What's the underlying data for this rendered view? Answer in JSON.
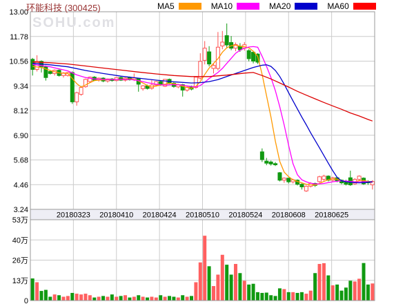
{
  "header": {
    "title": "环能科技 (300425)",
    "watermark": "SOHU.com"
  },
  "legend": {
    "items": [
      {
        "label": "MA5",
        "color": "#FF9900"
      },
      {
        "label": "MA10",
        "color": "#FF00FF"
      },
      {
        "label": "MA20",
        "color": "#0000CC"
      },
      {
        "label": "MA60",
        "color": "#FF0000"
      }
    ]
  },
  "chart_data": {
    "type": "candlestick-with-volume",
    "title": "环能科技 (300425)",
    "price_axis": {
      "tick_labels": [
        "13.00",
        "11.78",
        "10.56",
        "9.34",
        "8.12",
        "6.90",
        "5.68",
        "4.46",
        "3.24"
      ],
      "max": 13.0,
      "min": 3.24,
      "grid": true
    },
    "volume_axis": {
      "tick_labels": [
        "53万",
        "40万",
        "26万",
        "13万",
        "0"
      ],
      "max_wan": 53,
      "min_wan": 0
    },
    "x_axis": {
      "date_labels": [
        "20180323",
        "20180410",
        "20180424",
        "20180510",
        "20180524",
        "20180608",
        "20180625"
      ],
      "label_candle_indices": [
        9,
        19,
        29,
        39,
        49,
        59,
        69
      ]
    },
    "colors": {
      "up": "#FF5050",
      "down": "#119911",
      "ma5": "#FF9900",
      "ma10": "#FF00FF",
      "ma20": "#0000CC",
      "ma60": "#DD0000",
      "grid": "#CCCCCC",
      "border": "#999999",
      "band_bg": "#EEEEF5"
    },
    "candles": [
      [
        10.65,
        10.72,
        9.85,
        10.15
      ],
      [
        10.15,
        10.85,
        10.05,
        10.55
      ],
      [
        10.55,
        10.6,
        10.0,
        10.28
      ],
      [
        10.28,
        10.35,
        9.6,
        9.75
      ],
      [
        10.05,
        10.12,
        9.9,
        9.95
      ],
      [
        9.95,
        10.15,
        9.85,
        10.11
      ],
      [
        10.11,
        10.15,
        9.8,
        9.85
      ],
      [
        9.85,
        10.02,
        9.75,
        9.98
      ],
      [
        9.85,
        10.03,
        9.8,
        10.0
      ],
      [
        10.0,
        10.05,
        8.45,
        8.55
      ],
      [
        8.55,
        9.05,
        8.36,
        9.0
      ],
      [
        8.92,
        9.3,
        8.85,
        9.26
      ],
      [
        9.3,
        9.7,
        9.25,
        9.66
      ],
      [
        9.55,
        9.8,
        9.5,
        9.77
      ],
      [
        9.77,
        9.82,
        9.58,
        9.62
      ],
      [
        9.62,
        9.75,
        9.55,
        9.72
      ],
      [
        9.72,
        9.76,
        9.52,
        9.58
      ],
      [
        9.58,
        9.7,
        9.5,
        9.68
      ],
      [
        9.68,
        9.72,
        9.55,
        9.6
      ],
      [
        9.6,
        9.78,
        9.56,
        9.75
      ],
      [
        9.75,
        9.8,
        9.58,
        9.62
      ],
      [
        9.62,
        9.76,
        9.55,
        9.73
      ],
      [
        9.75,
        9.8,
        9.6,
        9.64
      ],
      [
        9.64,
        9.95,
        9.58,
        9.73
      ],
      [
        9.7,
        9.72,
        9.05,
        9.42
      ],
      [
        9.2,
        9.38,
        9.1,
        9.34
      ],
      [
        9.34,
        9.4,
        9.16,
        9.21
      ],
      [
        9.22,
        9.62,
        9.15,
        9.38
      ],
      [
        9.38,
        9.58,
        9.3,
        9.55
      ],
      [
        9.55,
        9.6,
        9.35,
        9.41
      ],
      [
        9.32,
        9.68,
        9.28,
        9.66
      ],
      [
        9.66,
        9.7,
        9.42,
        9.47
      ],
      [
        9.47,
        9.52,
        9.25,
        9.31
      ],
      [
        9.29,
        9.44,
        9.22,
        9.4
      ],
      [
        9.4,
        9.44,
        8.81,
        9.13
      ],
      [
        9.13,
        9.32,
        9.05,
        9.28
      ],
      [
        9.3,
        9.35,
        9.12,
        9.18
      ],
      [
        9.26,
        9.8,
        9.2,
        9.77
      ],
      [
        9.72,
        10.95,
        9.65,
        10.55
      ],
      [
        10.6,
        11.55,
        10.4,
        11.2
      ],
      [
        11.02,
        11.3,
        10.3,
        10.42
      ],
      [
        10.2,
        10.45,
        9.95,
        10.35
      ],
      [
        10.2,
        12.0,
        10.1,
        11.25
      ],
      [
        11.31,
        12.05,
        11.15,
        11.5
      ],
      [
        11.82,
        12.42,
        11.2,
        11.36
      ],
      [
        11.48,
        11.8,
        11.1,
        11.2
      ],
      [
        11.2,
        11.48,
        11.05,
        11.38
      ],
      [
        11.3,
        11.45,
        11.02,
        11.12
      ],
      [
        11.2,
        11.5,
        11.08,
        11.37
      ],
      [
        11.08,
        11.15,
        10.55,
        10.68
      ],
      [
        11.0,
        11.05,
        10.45,
        10.56
      ],
      [
        10.91,
        10.95,
        10.42,
        10.51
      ],
      [
        6.08,
        6.25,
        5.58,
        5.7
      ],
      [
        5.62,
        5.78,
        5.42,
        5.52
      ],
      [
        5.58,
        5.65,
        5.4,
        5.48
      ],
      [
        5.5,
        5.58,
        5.38,
        5.44
      ],
      [
        5.05,
        5.08,
        4.62,
        4.68
      ],
      [
        4.68,
        4.82,
        4.55,
        4.78
      ],
      [
        4.78,
        4.8,
        4.52,
        4.6
      ],
      [
        4.6,
        4.75,
        4.52,
        4.7
      ],
      [
        4.68,
        4.72,
        4.42,
        4.48
      ],
      [
        4.48,
        4.52,
        4.22,
        4.35
      ],
      [
        4.15,
        4.42,
        4.1,
        4.38
      ],
      [
        4.38,
        4.58,
        4.32,
        4.52
      ],
      [
        4.52,
        4.56,
        4.35,
        4.42
      ],
      [
        4.61,
        4.9,
        4.55,
        4.85
      ],
      [
        4.72,
        4.95,
        4.65,
        4.88
      ],
      [
        4.88,
        4.92,
        4.62,
        4.68
      ],
      [
        4.68,
        4.85,
        4.6,
        4.8
      ],
      [
        4.8,
        4.84,
        4.58,
        4.65
      ],
      [
        4.68,
        4.72,
        4.48,
        4.55
      ],
      [
        4.6,
        4.7,
        4.42,
        4.48
      ],
      [
        4.8,
        5.15,
        4.4,
        4.45
      ],
      [
        4.5,
        4.78,
        4.45,
        4.72
      ],
      [
        4.72,
        4.92,
        4.65,
        4.88
      ],
      [
        4.78,
        4.82,
        4.45,
        4.5
      ],
      [
        4.62,
        4.68,
        4.45,
        4.55
      ],
      [
        4.45,
        4.68,
        4.22,
        4.62
      ]
    ],
    "volumes_wan": [
      14.5,
      12,
      6.3,
      7,
      2.5,
      4,
      3.5,
      2.5,
      3,
      5,
      4.5,
      4,
      4.5,
      3.5,
      2,
      2.5,
      3,
      2.5,
      4,
      2.5,
      3,
      3.5,
      2,
      2.5,
      3.5,
      2.5,
      2,
      2.5,
      2,
      3.5,
      2.5,
      3,
      2.5,
      2,
      3.5,
      2.5,
      3,
      12,
      25,
      42.5,
      22.5,
      9.5,
      17,
      30,
      23.5,
      17,
      24,
      18,
      13,
      10.5,
      11,
      5.5,
      5,
      5.2,
      3.5,
      3,
      8,
      7.5,
      5.5,
      5.5,
      5,
      5.5,
      4.5,
      6.5,
      18,
      24,
      24.5,
      16.5,
      10,
      10.5,
      6.5,
      8.5,
      13,
      12.5,
      14.3,
      24.6,
      10.5,
      11.2
    ],
    "ma_lines": {
      "ma5": [
        [
          0,
          10.3
        ],
        [
          2,
          10.25
        ],
        [
          4,
          10.1
        ],
        [
          6,
          9.98
        ],
        [
          8,
          9.95
        ],
        [
          9,
          9.7
        ],
        [
          10,
          9.45
        ],
        [
          11,
          9.28
        ],
        [
          12,
          9.38
        ],
        [
          13,
          9.5
        ],
        [
          14,
          9.6
        ],
        [
          16,
          9.64
        ],
        [
          18,
          9.65
        ],
        [
          20,
          9.67
        ],
        [
          22,
          9.68
        ],
        [
          23,
          9.66
        ],
        [
          24,
          9.58
        ],
        [
          25,
          9.48
        ],
        [
          26,
          9.36
        ],
        [
          27,
          9.28
        ],
        [
          28,
          9.33
        ],
        [
          29,
          9.38
        ],
        [
          30,
          9.42
        ],
        [
          31,
          9.46
        ],
        [
          32,
          9.45
        ],
        [
          33,
          9.4
        ],
        [
          34,
          9.32
        ],
        [
          35,
          9.26
        ],
        [
          36,
          9.22
        ],
        [
          37,
          9.32
        ],
        [
          38,
          9.55
        ],
        [
          39,
          9.9
        ],
        [
          40,
          10.22
        ],
        [
          41,
          10.45
        ],
        [
          42,
          10.68
        ],
        [
          43,
          11.0
        ],
        [
          44,
          11.22
        ],
        [
          45,
          11.32
        ],
        [
          46,
          11.35
        ],
        [
          47,
          11.3
        ],
        [
          48,
          11.27
        ],
        [
          49,
          11.22
        ],
        [
          50,
          11.05
        ],
        [
          51,
          10.8
        ],
        [
          52,
          9.9
        ],
        [
          53,
          8.85
        ],
        [
          54,
          7.8
        ],
        [
          55,
          6.6
        ],
        [
          56,
          5.6
        ],
        [
          57,
          5.08
        ],
        [
          58,
          4.85
        ],
        [
          59,
          4.7
        ],
        [
          60,
          4.62
        ],
        [
          61,
          4.55
        ],
        [
          62,
          4.48
        ],
        [
          63,
          4.45
        ],
        [
          64,
          4.44
        ],
        [
          65,
          4.52
        ],
        [
          66,
          4.62
        ],
        [
          67,
          4.7
        ],
        [
          68,
          4.75
        ],
        [
          69,
          4.73
        ],
        [
          70,
          4.66
        ],
        [
          71,
          4.6
        ],
        [
          72,
          4.58
        ],
        [
          73,
          4.6
        ],
        [
          74,
          4.66
        ],
        [
          75,
          4.67
        ],
        [
          76,
          4.62
        ],
        [
          77,
          4.56
        ]
      ],
      "ma10": [
        [
          0,
          10.4
        ],
        [
          4,
          10.28
        ],
        [
          8,
          10.08
        ],
        [
          10,
          9.88
        ],
        [
          12,
          9.75
        ],
        [
          14,
          9.68
        ],
        [
          16,
          9.66
        ],
        [
          18,
          9.65
        ],
        [
          20,
          9.66
        ],
        [
          22,
          9.66
        ],
        [
          24,
          9.6
        ],
        [
          26,
          9.5
        ],
        [
          28,
          9.42
        ],
        [
          30,
          9.38
        ],
        [
          32,
          9.4
        ],
        [
          34,
          9.38
        ],
        [
          36,
          9.3
        ],
        [
          37,
          9.28
        ],
        [
          38,
          9.36
        ],
        [
          39,
          9.52
        ],
        [
          40,
          9.7
        ],
        [
          41,
          9.85
        ],
        [
          42,
          10.0
        ],
        [
          43,
          10.2
        ],
        [
          44,
          10.45
        ],
        [
          45,
          10.7
        ],
        [
          46,
          10.95
        ],
        [
          47,
          11.1
        ],
        [
          48,
          11.2
        ],
        [
          49,
          11.26
        ],
        [
          50,
          11.28
        ],
        [
          51,
          11.25
        ],
        [
          52,
          10.8
        ],
        [
          53,
          10.3
        ],
        [
          54,
          9.75
        ],
        [
          55,
          9.1
        ],
        [
          56,
          8.3
        ],
        [
          57,
          7.4
        ],
        [
          58,
          6.4
        ],
        [
          59,
          5.5
        ],
        [
          60,
          4.95
        ],
        [
          61,
          4.7
        ],
        [
          62,
          4.6
        ],
        [
          63,
          4.53
        ],
        [
          64,
          4.5
        ],
        [
          65,
          4.5
        ],
        [
          66,
          4.52
        ],
        [
          67,
          4.56
        ],
        [
          68,
          4.6
        ],
        [
          69,
          4.63
        ],
        [
          70,
          4.65
        ],
        [
          71,
          4.64
        ],
        [
          72,
          4.62
        ],
        [
          73,
          4.6
        ],
        [
          74,
          4.6
        ],
        [
          75,
          4.61
        ],
        [
          76,
          4.6
        ],
        [
          77,
          4.58
        ]
      ],
      "ma20": [
        [
          0,
          10.45
        ],
        [
          4,
          10.38
        ],
        [
          8,
          10.28
        ],
        [
          12,
          10.1
        ],
        [
          16,
          9.95
        ],
        [
          20,
          9.82
        ],
        [
          24,
          9.72
        ],
        [
          28,
          9.62
        ],
        [
          32,
          9.54
        ],
        [
          36,
          9.48
        ],
        [
          38,
          9.5
        ],
        [
          40,
          9.55
        ],
        [
          42,
          9.65
        ],
        [
          44,
          9.8
        ],
        [
          46,
          9.95
        ],
        [
          48,
          10.1
        ],
        [
          50,
          10.25
        ],
        [
          52,
          10.36
        ],
        [
          53,
          10.38
        ],
        [
          54,
          10.3
        ],
        [
          55,
          10.1
        ],
        [
          56,
          9.8
        ],
        [
          57,
          9.42
        ],
        [
          58,
          9.0
        ],
        [
          59,
          8.6
        ],
        [
          60,
          8.2
        ],
        [
          61,
          7.8
        ],
        [
          62,
          7.42
        ],
        [
          63,
          7.02
        ],
        [
          64,
          6.65
        ],
        [
          65,
          6.28
        ],
        [
          66,
          5.9
        ],
        [
          67,
          5.52
        ],
        [
          68,
          5.15
        ],
        [
          69,
          4.82
        ],
        [
          70,
          4.65
        ],
        [
          71,
          4.6
        ],
        [
          72,
          4.58
        ],
        [
          73,
          4.56
        ],
        [
          74,
          4.55
        ],
        [
          75,
          4.56
        ],
        [
          76,
          4.58
        ],
        [
          77,
          4.6
        ]
      ],
      "ma60": [
        [
          0,
          10.52
        ],
        [
          4,
          10.48
        ],
        [
          8,
          10.42
        ],
        [
          12,
          10.32
        ],
        [
          16,
          10.22
        ],
        [
          20,
          10.12
        ],
        [
          24,
          10.02
        ],
        [
          28,
          9.93
        ],
        [
          32,
          9.85
        ],
        [
          36,
          9.8
        ],
        [
          40,
          9.8
        ],
        [
          44,
          9.87
        ],
        [
          46,
          9.92
        ],
        [
          48,
          9.97
        ],
        [
          50,
          10.0
        ],
        [
          52,
          9.85
        ],
        [
          54,
          9.68
        ],
        [
          56,
          9.48
        ],
        [
          58,
          9.28
        ],
        [
          60,
          9.07
        ],
        [
          62,
          8.88
        ],
        [
          64,
          8.7
        ],
        [
          66,
          8.52
        ],
        [
          68,
          8.35
        ],
        [
          70,
          8.18
        ],
        [
          72,
          8.0
        ],
        [
          74,
          7.85
        ],
        [
          76,
          7.68
        ],
        [
          77,
          7.6
        ]
      ]
    }
  }
}
